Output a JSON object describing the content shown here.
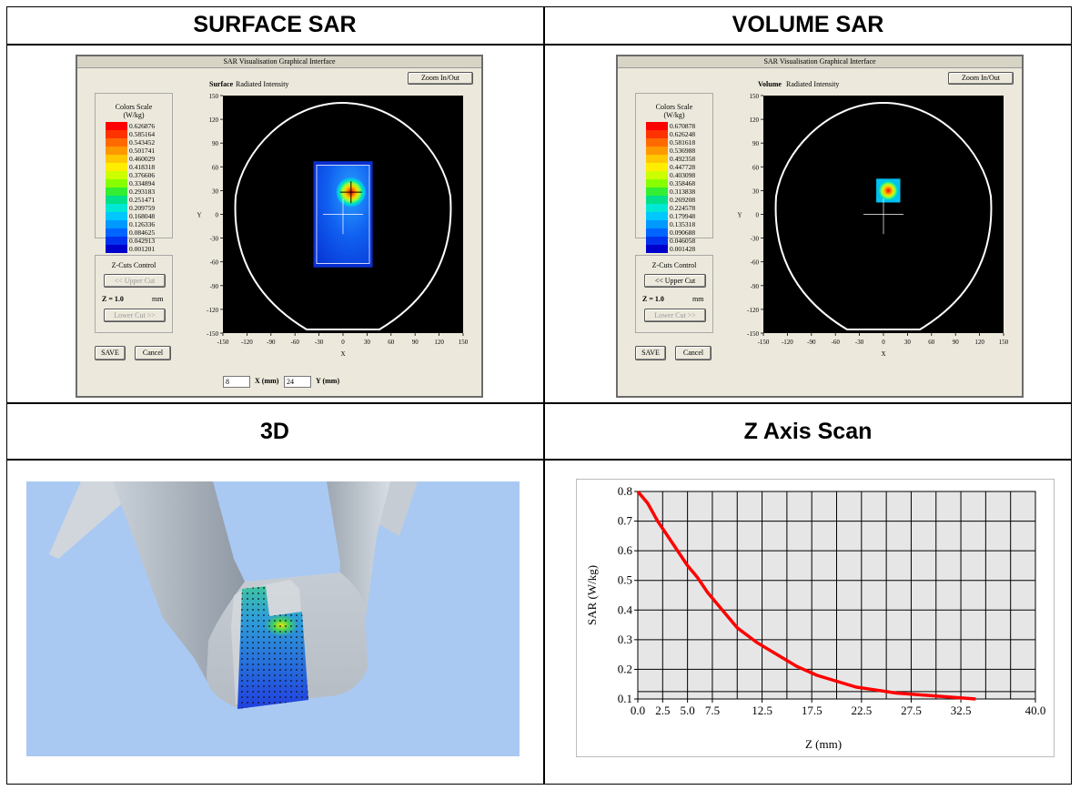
{
  "captions": {
    "surface": "SURFACE SAR",
    "volume": "VOLUME SAR",
    "three_d": "3D",
    "zscan": "Z Axis Scan"
  },
  "surface_window": {
    "title": "SAR Visualisation Graphical Interface",
    "zoom_label": "Zoom In/Out",
    "mode_bold": "Surface",
    "mode_rest": "Radiated Intensity",
    "scale_title": "Colors Scale",
    "scale_unit": "(W/kg)",
    "scale_values": [
      "0.626876",
      "0.585164",
      "0.543452",
      "0.501741",
      "0.460029",
      "0.418318",
      "0.376606",
      "0.334894",
      "0.293183",
      "0.251471",
      "0.209759",
      "0.168048",
      "0.126336",
      "0.084625",
      "0.042913",
      "0.001201"
    ],
    "zcuts_title": "Z-Cuts Control",
    "upper_cut": "<< Upper Cut",
    "z_label": "Z = 1.0",
    "z_unit": "mm",
    "lower_cut": "Lower Cut >>",
    "save": "SAVE",
    "cancel": "Cancel",
    "x_value": "8",
    "x_label": "X (mm)",
    "y_value": "24",
    "y_label": "Y (mm)",
    "y_ticks": [
      "150",
      "120",
      "90",
      "60",
      "30",
      "0",
      "-30",
      "-60",
      "-90",
      "-120",
      "-150"
    ],
    "x_ticks": [
      "-150",
      "-120",
      "-90",
      "-60",
      "-30",
      "0",
      "30",
      "60",
      "90",
      "120",
      "150"
    ],
    "axis_x": "X",
    "axis_y": "Y"
  },
  "volume_window": {
    "title": "SAR Visualisation Graphical Interface",
    "zoom_label": "Zoom In/Out",
    "mode_bold": "Volume",
    "mode_rest": "Radiated Intensity",
    "scale_title": "Colors Scale",
    "scale_unit": "(W/kg)",
    "scale_values": [
      "0.670878",
      "0.626248",
      "0.581618",
      "0.536988",
      "0.492358",
      "0.447728",
      "0.403098",
      "0.358468",
      "0.313838",
      "0.269208",
      "0.224578",
      "0.179948",
      "0.135318",
      "0.090688",
      "0.046058",
      "0.001428"
    ],
    "zcuts_title": "Z-Cuts Control",
    "upper_cut": "<< Upper Cut",
    "z_label": "Z = 1.0",
    "z_unit": "mm",
    "lower_cut": "Lower Cut >>",
    "save": "SAVE",
    "cancel": "Cancel",
    "y_ticks": [
      "150",
      "120",
      "90",
      "60",
      "30",
      "0",
      "-30",
      "-60",
      "-90",
      "-120",
      "-150"
    ],
    "x_ticks": [
      "-150",
      "-120",
      "-90",
      "-60",
      "-30",
      "0",
      "30",
      "60",
      "90",
      "120",
      "150"
    ],
    "axis_x": "X",
    "axis_y": "Y"
  },
  "scale_colors": [
    "#ff0000",
    "#ff3300",
    "#ff6a00",
    "#ff9900",
    "#ffc800",
    "#ffee00",
    "#ccff00",
    "#88ff00",
    "#33ee33",
    "#00e08a",
    "#00e8d4",
    "#00c8ff",
    "#0099ff",
    "#0066ff",
    "#0033ee",
    "#0000cc"
  ],
  "zscan": {
    "xlabel": "Z (mm)",
    "ylabel": "SAR (W/kg)",
    "x_ticks": [
      "0.0",
      "2.5",
      "5.0",
      "7.5",
      "12.5",
      "17.5",
      "22.5",
      "27.5",
      "32.5",
      "40.0"
    ],
    "x_tick_vals": [
      0,
      2.5,
      5,
      7.5,
      12.5,
      17.5,
      22.5,
      27.5,
      32.5,
      40
    ],
    "y_ticks": [
      "0.1",
      "0.2",
      "0.3",
      "0.4",
      "0.5",
      "0.6",
      "0.7",
      "0.8"
    ]
  },
  "chart_data": {
    "type": "line",
    "title": "",
    "xlabel": "Z (mm)",
    "ylabel": "SAR (W/kg)",
    "xlim": [
      0,
      40
    ],
    "ylim": [
      0.1,
      0.8
    ],
    "grid": true,
    "series": [
      {
        "color": "#ff0000",
        "x": [
          0,
          1,
          2,
          3,
          4,
          5,
          6,
          7,
          8,
          9,
          10,
          12,
          14,
          16,
          18,
          20,
          22,
          24,
          26,
          28,
          30,
          32,
          34
        ],
        "y": [
          0.8,
          0.76,
          0.7,
          0.65,
          0.6,
          0.55,
          0.51,
          0.46,
          0.42,
          0.38,
          0.34,
          0.29,
          0.25,
          0.21,
          0.18,
          0.16,
          0.14,
          0.13,
          0.12,
          0.115,
          0.11,
          0.105,
          0.1
        ]
      }
    ]
  },
  "colors": {
    "plot_bg": "#000000",
    "sky": "#a9c9f2",
    "curve": "#ff0000",
    "chart_bg": "#e6e6e6"
  }
}
